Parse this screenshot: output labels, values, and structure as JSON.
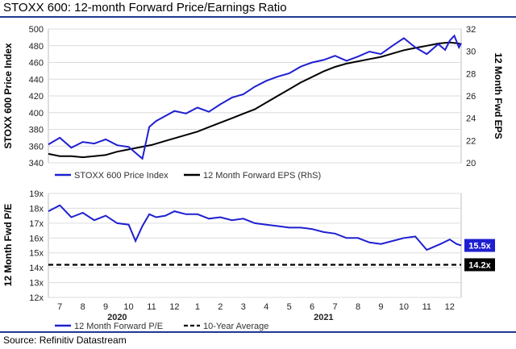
{
  "header": {
    "title": "STOXX 600: 12-month Forward Price/Earnings Ratio"
  },
  "footer": {
    "source": "Source: Refinitiv Datastream"
  },
  "colors": {
    "price": "#1f1fd1",
    "eps": "#000000",
    "pe": "#1f1fd1",
    "avg": "#000000",
    "label_bg_pe": "#1f1fd1",
    "label_bg_avg": "#000000",
    "rule": "#1f3a93"
  },
  "chart_data": [
    {
      "type": "line",
      "ylabel": "STOXX 600 Price Index",
      "y2label": "12 Month Fwd EPS",
      "ylim": [
        340,
        500
      ],
      "y2lim": [
        20,
        32
      ],
      "yticks": [
        "340",
        "360",
        "380",
        "400",
        "420",
        "440",
        "460",
        "480",
        "500"
      ],
      "y2ticks": [
        "20",
        "22",
        "24",
        "26",
        "28",
        "30",
        "32"
      ],
      "grid": true,
      "legend_position": "bottom-left",
      "x_range": [
        6.5,
        24.5
      ],
      "series": [
        {
          "name": "STOXX 600 Price Index",
          "axis": "left",
          "x": [
            6.5,
            7.0,
            7.5,
            8.0,
            8.5,
            9.0,
            9.5,
            10.0,
            10.3,
            10.6,
            10.9,
            11.2,
            11.6,
            12.0,
            12.5,
            13.0,
            13.5,
            14.0,
            14.5,
            15.0,
            15.5,
            16.0,
            16.5,
            17.0,
            17.5,
            18.0,
            18.5,
            19.0,
            19.5,
            20.0,
            20.5,
            21.0,
            21.5,
            22.0,
            22.5,
            23.0,
            23.5,
            23.8,
            24.0,
            24.2,
            24.4,
            24.5
          ],
          "y": [
            362,
            370,
            358,
            365,
            363,
            368,
            361,
            359,
            352,
            345,
            383,
            390,
            396,
            402,
            399,
            406,
            401,
            410,
            418,
            422,
            431,
            438,
            443,
            447,
            455,
            460,
            463,
            468,
            462,
            467,
            473,
            470,
            480,
            489,
            478,
            470,
            482,
            475,
            486,
            492,
            478,
            483
          ]
        },
        {
          "name": "12 Month Forward EPS (RhS)",
          "axis": "right",
          "x": [
            6.5,
            7.0,
            7.5,
            8.0,
            8.5,
            9.0,
            9.5,
            10.0,
            10.5,
            11.0,
            11.5,
            12.0,
            12.5,
            13.0,
            13.5,
            14.0,
            14.5,
            15.0,
            15.5,
            16.0,
            16.5,
            17.0,
            17.5,
            18.0,
            18.5,
            19.0,
            19.5,
            20.0,
            20.5,
            21.0,
            21.5,
            22.0,
            22.5,
            23.0,
            23.5,
            24.0,
            24.4,
            24.5
          ],
          "y": [
            20.8,
            20.6,
            20.6,
            20.5,
            20.6,
            20.7,
            21.0,
            21.2,
            21.4,
            21.6,
            21.9,
            22.2,
            22.5,
            22.8,
            23.2,
            23.6,
            24.0,
            24.4,
            24.8,
            25.4,
            26.0,
            26.6,
            27.2,
            27.7,
            28.2,
            28.6,
            28.9,
            29.1,
            29.3,
            29.5,
            29.8,
            30.1,
            30.3,
            30.5,
            30.7,
            30.8,
            30.7,
            30.6
          ]
        }
      ],
      "legend": [
        "STOXX 600 Price Index",
        "12 Month Forward EPS (RhS)"
      ]
    },
    {
      "type": "line",
      "ylabel": "12 Month Fwd P/E",
      "ylim": [
        12,
        19
      ],
      "yticks": [
        "12x",
        "13x",
        "14x",
        "15x",
        "16x",
        "17x",
        "18x",
        "19x"
      ],
      "grid": true,
      "legend_position": "bottom-left",
      "x_range": [
        6.5,
        24.5
      ],
      "xticks": [
        "7",
        "8",
        "9",
        "10",
        "11",
        "12",
        "1",
        "2",
        "3",
        "4",
        "5",
        "6",
        "7",
        "8",
        "9",
        "10",
        "11",
        "12"
      ],
      "xtick_positions": [
        7,
        8,
        9,
        10,
        11,
        12,
        13,
        14,
        15,
        16,
        17,
        18,
        19,
        20,
        21,
        22,
        23,
        24
      ],
      "year_labels": [
        {
          "label": "2020",
          "x": 9.5
        },
        {
          "label": "2021",
          "x": 18.5
        }
      ],
      "series": [
        {
          "name": "12 Month Forward P/E",
          "x": [
            6.5,
            7.0,
            7.5,
            8.0,
            8.5,
            9.0,
            9.5,
            10.0,
            10.3,
            10.6,
            10.9,
            11.2,
            11.6,
            12.0,
            12.5,
            13.0,
            13.5,
            14.0,
            14.5,
            15.0,
            15.5,
            16.0,
            16.5,
            17.0,
            17.5,
            18.0,
            18.5,
            19.0,
            19.5,
            20.0,
            20.5,
            21.0,
            21.5,
            22.0,
            22.5,
            23.0,
            23.3,
            23.6,
            24.0,
            24.3,
            24.5
          ],
          "y": [
            17.8,
            18.2,
            17.4,
            17.7,
            17.2,
            17.5,
            17.0,
            16.9,
            15.8,
            16.8,
            17.6,
            17.4,
            17.5,
            17.8,
            17.6,
            17.6,
            17.3,
            17.4,
            17.2,
            17.3,
            17.0,
            16.9,
            16.8,
            16.7,
            16.7,
            16.6,
            16.4,
            16.3,
            16.0,
            16.0,
            15.7,
            15.6,
            15.8,
            16.0,
            16.1,
            15.2,
            15.4,
            15.6,
            15.9,
            15.6,
            15.5
          ]
        },
        {
          "name": "10-Year Average",
          "x": [
            6.5,
            24.5
          ],
          "y": [
            14.2,
            14.2
          ],
          "dashed": true
        }
      ],
      "legend": [
        "12 Month Forward P/E",
        "10-Year Average"
      ],
      "end_labels": [
        "15.5x",
        "14.2x"
      ]
    }
  ]
}
